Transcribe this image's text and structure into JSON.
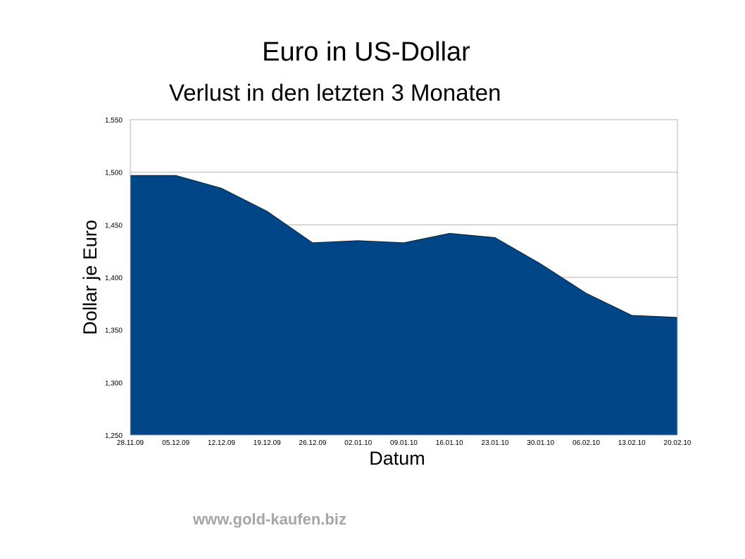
{
  "chart_data": {
    "type": "area",
    "title": "Euro in US-Dollar",
    "subtitle": "Verlust in den letzten 3 Monaten",
    "xlabel": "Datum",
    "ylabel": "Dollar je Euro",
    "x": [
      "28.11.09",
      "05.12.09",
      "12.12.09",
      "19.12.09",
      "26.12.09",
      "02.01.10",
      "09.01.10",
      "16.01.10",
      "23.01.10",
      "30.01.10",
      "06.02.10",
      "13.02.10",
      "20.02.10"
    ],
    "series": [
      {
        "values": [
          1.497,
          1.497,
          1.485,
          1.463,
          1.433,
          1.435,
          1.433,
          1.442,
          1.438,
          1.413,
          1.385,
          1.364,
          1.362
        ]
      }
    ],
    "ylim": [
      1.25,
      1.55
    ],
    "yticks": [
      "1,250",
      "1,300",
      "1,350",
      "1,400",
      "1,450",
      "1,500",
      "1,550"
    ],
    "grid": true,
    "fill_color": "#004586",
    "grid_color": "#b3b3b3"
  },
  "footer": "www.gold-kaufen.biz"
}
